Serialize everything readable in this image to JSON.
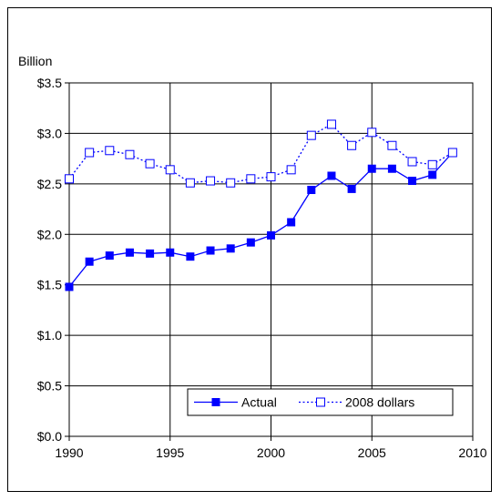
{
  "chart_data": {
    "type": "line",
    "unit_label": "Billion",
    "x": [
      1990,
      1991,
      1992,
      1993,
      1994,
      1995,
      1996,
      1997,
      1998,
      1999,
      2000,
      2001,
      2002,
      2003,
      2004,
      2005,
      2006,
      2007,
      2008,
      2009
    ],
    "series": [
      {
        "name": "Actual",
        "color": "#0000ff",
        "marker": "filled-square",
        "line_style": "solid",
        "values": [
          1.48,
          1.73,
          1.79,
          1.82,
          1.81,
          1.82,
          1.78,
          1.84,
          1.86,
          1.92,
          1.99,
          2.12,
          2.44,
          2.58,
          2.45,
          2.65,
          2.65,
          2.53,
          2.59,
          2.81
        ]
      },
      {
        "name": "2008 dollars",
        "color": "#0000ff",
        "marker": "open-square",
        "line_style": "dotted",
        "values": [
          2.55,
          2.81,
          2.83,
          2.79,
          2.7,
          2.64,
          2.51,
          2.53,
          2.51,
          2.55,
          2.57,
          2.64,
          2.98,
          3.09,
          2.88,
          3.01,
          2.88,
          2.72,
          2.69,
          2.81
        ]
      }
    ],
    "xlim": [
      1990,
      2010
    ],
    "ylim": [
      0,
      3.5
    ],
    "x_ticks": [
      1990,
      1995,
      2000,
      2005,
      2010
    ],
    "x_tick_labels": [
      "1990",
      "1995",
      "2000",
      "2005",
      "2010"
    ],
    "y_ticks": [
      0,
      0.5,
      1.0,
      1.5,
      2.0,
      2.5,
      3.0,
      3.5
    ],
    "y_tick_labels": [
      "$0.0",
      "$0.5",
      "$1.0",
      "$1.5",
      "$2.0",
      "$2.5",
      "$3.0",
      "$3.5"
    ],
    "grid": "both",
    "legend_position": "bottom-right"
  }
}
